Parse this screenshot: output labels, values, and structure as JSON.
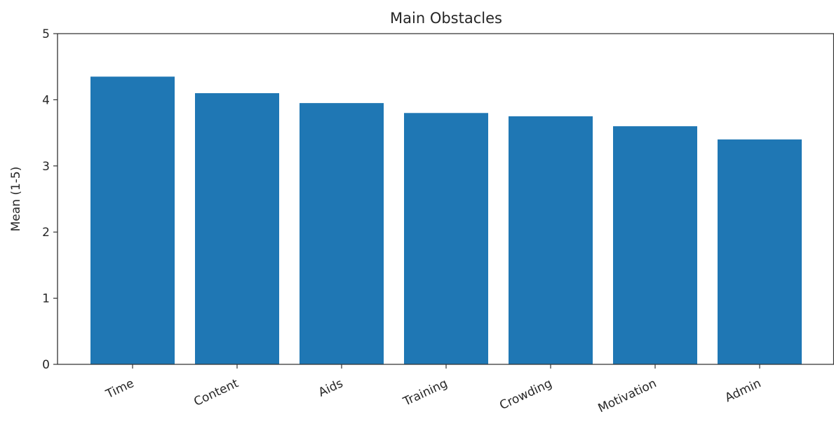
{
  "chart_data": {
    "type": "bar",
    "title": "Main Obstacles",
    "xlabel": "",
    "ylabel": "Mean (1-5)",
    "categories": [
      "Time",
      "Content",
      "Aids",
      "Training",
      "Crowding",
      "Motivation",
      "Admin"
    ],
    "values": [
      4.35,
      4.1,
      3.95,
      3.8,
      3.75,
      3.6,
      3.4
    ],
    "ylim": [
      0,
      5
    ],
    "yticks": [
      0,
      1,
      2,
      3,
      4,
      5
    ],
    "grid": false,
    "bar_color": "#1f77b4",
    "axis_color": "#333333"
  }
}
